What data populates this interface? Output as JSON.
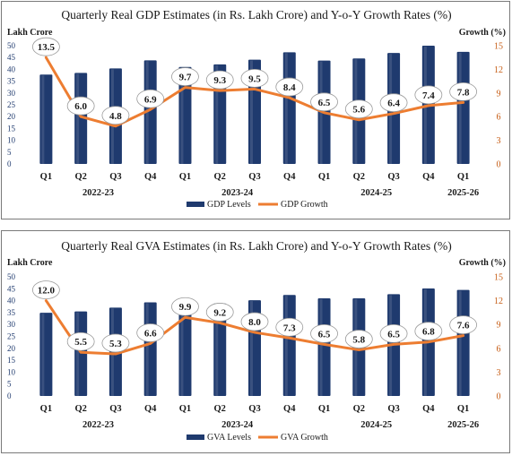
{
  "chart_data": [
    {
      "type": "bar",
      "title": "Quarterly Real GDP Estimates (in Rs. Lakh Crore) and Y-o-Y Growth Rates (%)",
      "ylabel": "Lakh Crore",
      "y2label": "Growth (%)",
      "ylim": [
        0,
        50
      ],
      "y2lim": [
        0,
        15
      ],
      "yticks": [
        0,
        5,
        10,
        15,
        20,
        25,
        30,
        35,
        40,
        45,
        50
      ],
      "y2ticks": [
        0,
        3,
        6,
        9,
        12,
        15
      ],
      "categories": [
        "Q1",
        "Q2",
        "Q3",
        "Q4",
        "Q1",
        "Q2",
        "Q3",
        "Q4",
        "Q1",
        "Q2",
        "Q3",
        "Q4",
        "Q1"
      ],
      "years": [
        {
          "label": "2022-23",
          "start": 0,
          "end": 3
        },
        {
          "label": "2023-24",
          "start": 4,
          "end": 7
        },
        {
          "label": "2024-25",
          "start": 8,
          "end": 11
        },
        {
          "label": "2025-26",
          "start": 12,
          "end": 12
        }
      ],
      "series": [
        {
          "name": "GDP Levels",
          "type": "bar",
          "axis": "left",
          "color": "#1f3a6e",
          "values": [
            37.8,
            38.5,
            40.4,
            43.8,
            41.0,
            42.1,
            44.1,
            47.2,
            43.7,
            44.6,
            46.9,
            50.0,
            47.4
          ]
        },
        {
          "name": "GDP Growth",
          "type": "line",
          "axis": "right",
          "color": "#ed7d31",
          "values": [
            13.5,
            6.0,
            4.8,
            6.9,
            9.7,
            9.3,
            9.5,
            8.4,
            6.5,
            5.6,
            6.4,
            7.4,
            7.8
          ],
          "labels": [
            "13.5",
            "6.0",
            "4.8",
            "6.9",
            "9.7",
            "9.3",
            "9.5",
            "8.4",
            "6.5",
            "5.6",
            "6.4",
            "7.4",
            "7.8"
          ]
        }
      ],
      "legend": "bottom"
    },
    {
      "type": "bar",
      "title": "Quarterly Real GVA Estimates (in Rs. Lakh Crore) and Y-o-Y Growth Rates (%)",
      "ylabel": "Lakh Crore",
      "y2label": "Growth (%)",
      "ylim": [
        0,
        50
      ],
      "y2lim": [
        0,
        15
      ],
      "yticks": [
        0,
        5,
        10,
        15,
        20,
        25,
        30,
        35,
        40,
        45,
        50
      ],
      "y2ticks": [
        0,
        3,
        6,
        9,
        12,
        15
      ],
      "categories": [
        "Q1",
        "Q2",
        "Q3",
        "Q4",
        "Q1",
        "Q2",
        "Q3",
        "Q4",
        "Q1",
        "Q2",
        "Q3",
        "Q4",
        "Q1"
      ],
      "years": [
        {
          "label": "2022-23",
          "start": 0,
          "end": 3
        },
        {
          "label": "2023-24",
          "start": 4,
          "end": 7
        },
        {
          "label": "2024-25",
          "start": 8,
          "end": 11
        },
        {
          "label": "2025-26",
          "start": 12,
          "end": 12
        }
      ],
      "series": [
        {
          "name": "GVA Levels",
          "type": "bar",
          "axis": "left",
          "color": "#1f3a6e",
          "values": [
            34.9,
            35.5,
            37.1,
            39.3,
            38.4,
            38.8,
            40.2,
            42.4,
            41.0,
            41.0,
            42.7,
            45.1,
            44.5
          ]
        },
        {
          "name": "GVA Growth",
          "type": "line",
          "axis": "right",
          "color": "#ed7d31",
          "values": [
            12.0,
            5.5,
            5.3,
            6.6,
            9.9,
            9.2,
            8.0,
            7.3,
            6.5,
            5.8,
            6.5,
            6.8,
            7.6
          ],
          "labels": [
            "12.0",
            "5.5",
            "5.3",
            "6.6",
            "9.9",
            "9.2",
            "8.0",
            "7.3",
            "6.5",
            "5.8",
            "6.5",
            "6.8",
            "7.6"
          ]
        }
      ],
      "legend": "bottom"
    }
  ]
}
